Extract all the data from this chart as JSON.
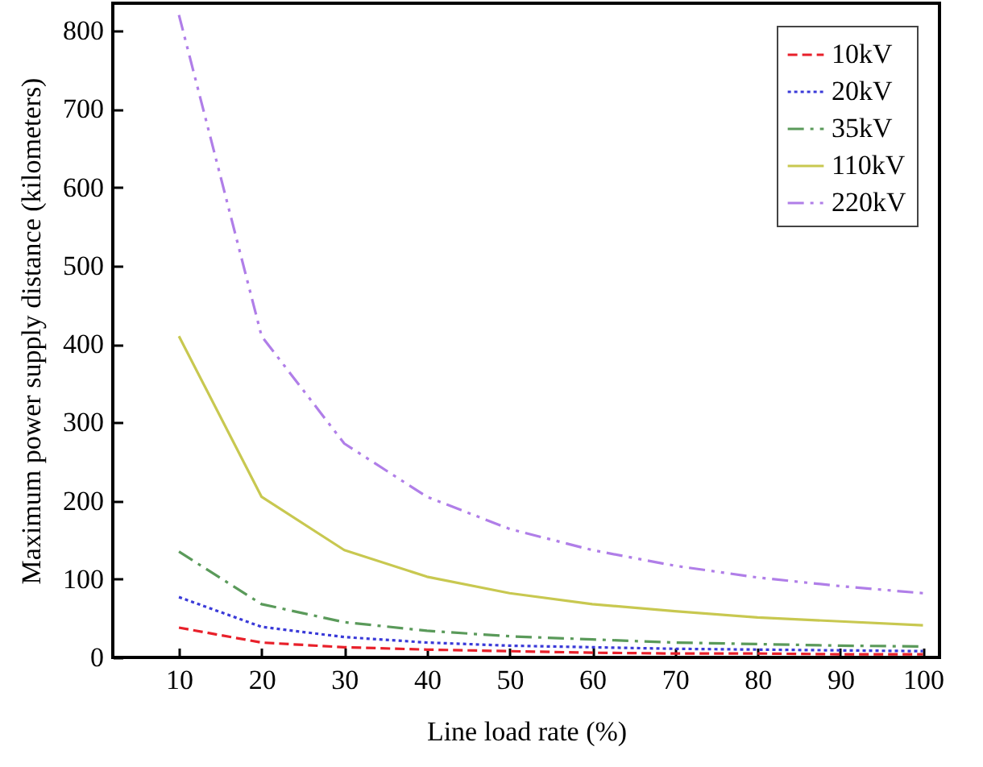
{
  "chart_data": {
    "type": "line",
    "xlabel": "Line load rate (%)",
    "ylabel": "Maximum power supply distance (kilometers)",
    "x": [
      10,
      20,
      30,
      40,
      50,
      60,
      70,
      80,
      90,
      100
    ],
    "series": [
      {
        "name": "10kV",
        "color": "#e8202a",
        "line_style": "dashed",
        "values": [
          38,
          19,
          13,
          10,
          8,
          6,
          5,
          5,
          4,
          4
        ]
      },
      {
        "name": "20kV",
        "color": "#3a3ad8",
        "line_style": "dotted",
        "values": [
          77,
          39,
          26,
          19,
          15,
          13,
          11,
          10,
          9,
          8
        ]
      },
      {
        "name": "35kV",
        "color": "#5a9a5a",
        "line_style": "dashdot",
        "values": [
          135,
          68,
          45,
          34,
          27,
          23,
          19,
          17,
          15,
          14
        ]
      },
      {
        "name": "110kV",
        "color": "#c8c850",
        "line_style": "solid",
        "values": [
          410,
          205,
          137,
          103,
          82,
          68,
          59,
          51,
          46,
          41
        ]
      },
      {
        "name": "220kV",
        "color": "#b07ee8",
        "line_style": "dashdotdot",
        "values": [
          820,
          410,
          273,
          205,
          164,
          137,
          117,
          102,
          91,
          82
        ]
      }
    ],
    "xlim": [
      2,
      102
    ],
    "xticks": [
      10,
      20,
      30,
      40,
      50,
      60,
      70,
      80,
      90,
      100
    ],
    "ylim": [
      0,
      835
    ],
    "yticks": [
      0,
      100,
      200,
      300,
      400,
      500,
      600,
      700,
      800
    ],
    "grid": false,
    "legend": "top right",
    "marker": "none"
  }
}
